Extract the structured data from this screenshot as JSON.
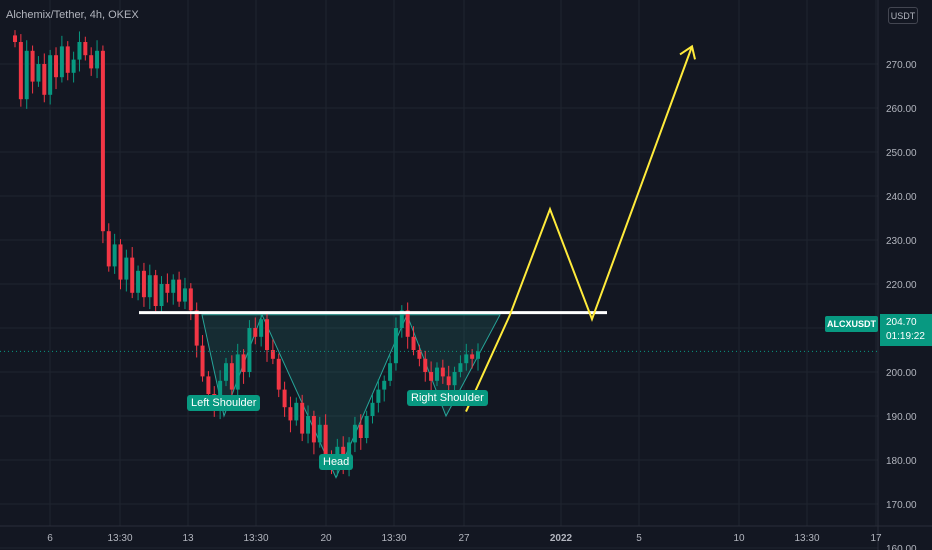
{
  "header": {
    "title": "Alchemix/Tether, 4h, OKEX",
    "currency": "USDT"
  },
  "symbol_tag": "ALCXUSDT",
  "price_tag": {
    "price": "204.70",
    "countdown": "01:19:22"
  },
  "pattern_labels": {
    "left_shoulder": "Left Shoulder",
    "head": "Head",
    "right_shoulder": "Right Shoulder"
  },
  "colors": {
    "background": "#131722",
    "up": "#089981",
    "down": "#f23645",
    "neckline": "#ffffff",
    "projection": "#ffeb3b",
    "pattern_fill": "#26a69a",
    "grid": "#1f2430",
    "axis_text": "#b2b5be"
  },
  "chart_data": {
    "type": "candlestick",
    "y_axis": {
      "ticks": [
        "160.00",
        "170.00",
        "180.00",
        "190.00",
        "200.00",
        "210.00",
        "220.00",
        "230.00",
        "240.00",
        "250.00",
        "260.00",
        "270.00"
      ],
      "ylim": [
        160,
        275
      ]
    },
    "x_axis": {
      "ticks": [
        "6",
        "13:30",
        "13",
        "13:30",
        "20",
        "13:30",
        "27",
        "2022",
        "5",
        "10",
        "13:30",
        "17"
      ]
    },
    "last_price": 204.7,
    "neckline": 213.5,
    "pattern_polygon_prices": [
      213,
      190,
      213,
      176,
      213,
      190,
      213
    ],
    "projection_path_prices": [
      191,
      213,
      237,
      212,
      274
    ],
    "price_path": [
      275,
      262,
      273,
      266,
      270,
      263,
      272,
      267,
      274,
      268,
      271,
      275,
      272,
      269,
      273,
      232,
      224,
      229,
      221,
      226,
      218,
      223,
      217,
      222,
      215,
      220,
      218,
      221,
      216,
      219,
      214,
      206,
      199,
      195,
      192,
      198,
      202,
      196,
      204,
      200,
      210,
      208,
      212,
      205,
      203,
      196,
      192,
      189,
      193,
      186,
      190,
      184,
      188,
      181,
      179,
      183,
      178,
      184,
      188,
      185,
      190,
      193,
      196,
      198,
      202,
      210,
      214,
      208,
      205,
      203,
      200,
      198,
      201,
      199,
      197,
      200,
      202,
      204,
      203,
      204.7
    ]
  }
}
